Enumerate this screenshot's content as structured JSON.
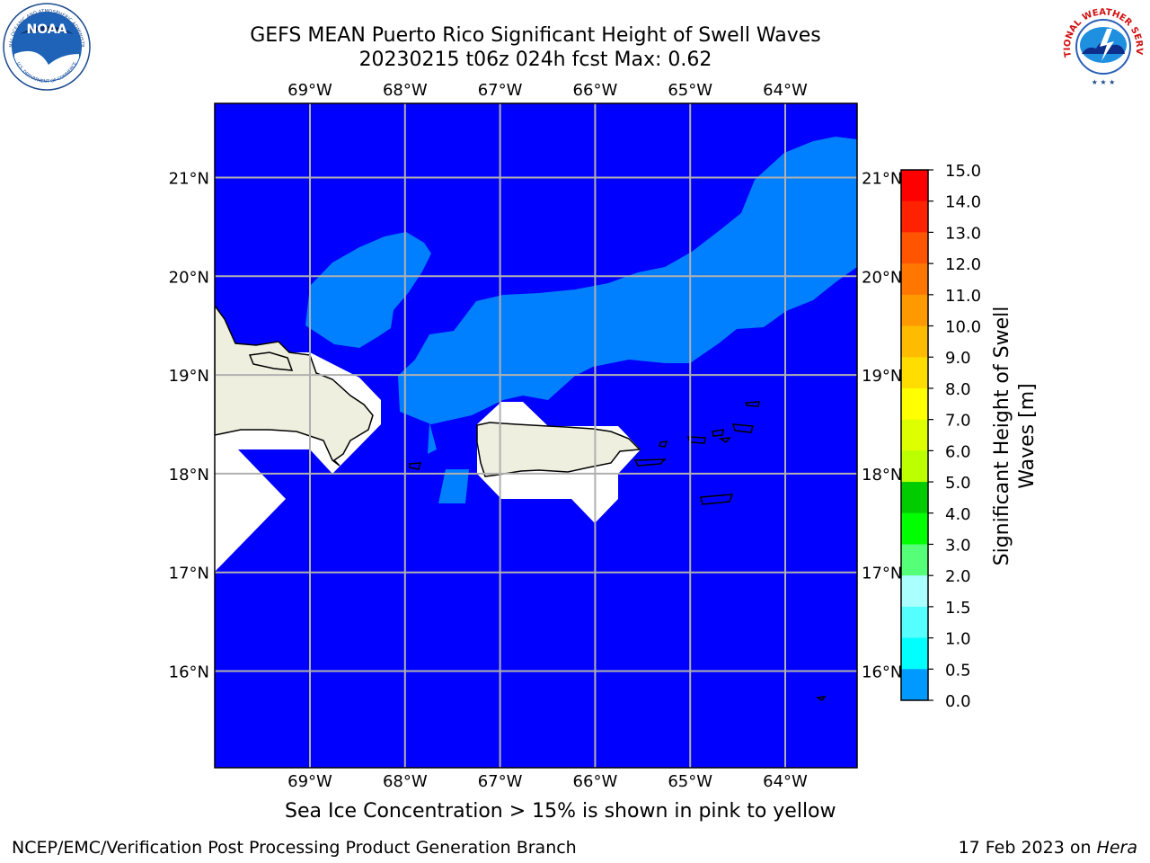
{
  "header": {
    "title_line1": "GEFS MEAN Puerto Rico Significant Height of Swell Waves",
    "title_line2": "20230215 t06z 024h fcst   Max: 0.62"
  },
  "logos": {
    "noaa_text": "NOAA",
    "noaa_ring_text": "NATIONAL OCEANIC AND ATMOSPHERIC ADMINISTRATION",
    "noaa_dept_text": "U.S. DEPARTMENT OF COMMERCE",
    "nws_ring_text": "NATIONAL WEATHER SERVICE"
  },
  "map": {
    "lon_labels": [
      "69°W",
      "68°W",
      "67°W",
      "66°W",
      "65°W",
      "64°W"
    ],
    "lat_labels": [
      "21°N",
      "20°N",
      "19°N",
      "18°N",
      "17°N",
      "16°N"
    ],
    "colors": {
      "ocean_low": "#0000ff",
      "ocean_mid": "#007fff",
      "land": "#efefdf",
      "masked": "#ffffff",
      "grid": "#b0b0b0"
    }
  },
  "colorbar": {
    "label": "Significant Height of Swell Waves [m]",
    "label_line1": "Significant Height of Swell",
    "label_line2": "Waves [m]",
    "ticks": [
      "15.0",
      "14.0",
      "13.0",
      "12.0",
      "11.0",
      "10.0",
      "9.0",
      "8.0",
      "7.0",
      "6.0",
      "5.0",
      "4.0",
      "3.0",
      "2.0",
      "1.5",
      "1.0",
      "0.5",
      "0.0"
    ],
    "colors_top_to_bottom": [
      "#ff0000",
      "#ff2200",
      "#ff5500",
      "#ff7700",
      "#ff9900",
      "#ffbb00",
      "#ffdd00",
      "#ffff00",
      "#ddff00",
      "#bbff00",
      "#99ff00",
      "#00cc00",
      "#00ff00",
      "#55ff77",
      "#aaffff",
      "#55ffff",
      "#00ffff",
      "#0099ff",
      "#0000ff"
    ]
  },
  "footer": {
    "ice_note": "Sea Ice Concentration > 15% is shown in pink to yellow",
    "left": "NCEP/EMC/Verification Post Processing Product Generation Branch",
    "right_date": "17 Feb 2023 on ",
    "right_machine": "Hera"
  }
}
